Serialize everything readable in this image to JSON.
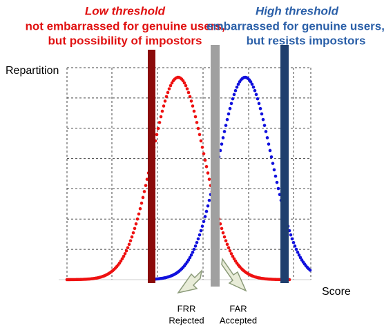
{
  "low": {
    "title": "Low threshold",
    "line1": "not embarrassed for genuine users,",
    "line2": "but possibility of impostors"
  },
  "high": {
    "title": "High threshold",
    "line1": "embarrassed for genuine users,",
    "line2": "but resists impostors"
  },
  "axes": {
    "y_label": "Repartition",
    "x_label": "Score"
  },
  "frr": {
    "label": "FRR",
    "sub": "Rejected"
  },
  "far": {
    "label": "FAR",
    "sub": "Accepted"
  }
}
